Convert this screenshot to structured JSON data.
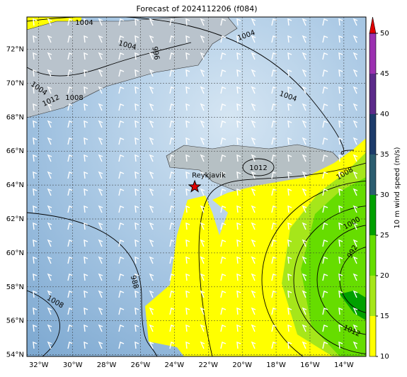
{
  "title": "Forecast of 2024112206 (f084)",
  "map": {
    "xlim": [
      -32.7,
      -12.7
    ],
    "ylim": [
      53.9,
      73.9
    ],
    "xticks": [
      {
        "value": -32,
        "label": "32°W"
      },
      {
        "value": -30,
        "label": "30°W"
      },
      {
        "value": -28,
        "label": "28°W"
      },
      {
        "value": -26,
        "label": "26°W"
      },
      {
        "value": -24,
        "label": "24°W"
      },
      {
        "value": -22,
        "label": "22°W"
      },
      {
        "value": -20,
        "label": "20°W"
      },
      {
        "value": -18,
        "label": "18°W"
      },
      {
        "value": -16,
        "label": "16°W"
      },
      {
        "value": -14,
        "label": "14°W"
      }
    ],
    "yticks": [
      {
        "value": 54,
        "label": "54°N"
      },
      {
        "value": 56,
        "label": "56°N"
      },
      {
        "value": 58,
        "label": "58°N"
      },
      {
        "value": 60,
        "label": "60°N"
      },
      {
        "value": 62,
        "label": "62°N"
      },
      {
        "value": 64,
        "label": "64°N"
      },
      {
        "value": 66,
        "label": "66°N"
      },
      {
        "value": 68,
        "label": "68°N"
      },
      {
        "value": 70,
        "label": "70°N"
      },
      {
        "value": 72,
        "label": "72°N"
      }
    ],
    "grid": true,
    "station": {
      "name": "Reykjavik",
      "lon": -22.8,
      "lat": 63.9
    },
    "contour_labels": [
      "1004",
      "1004",
      "1004",
      "1004",
      "1004",
      "1012",
      "1008",
      "1012",
      "1008",
      "1000",
      "992",
      "988",
      "1008",
      "1012",
      "996"
    ]
  },
  "colorbar": {
    "label": "10 m wind speed (m/s)",
    "lim": [
      10,
      50
    ],
    "ticks": [
      10,
      15,
      20,
      25,
      30,
      35,
      40,
      45,
      50
    ],
    "colors": [
      "#ffff00",
      "#a6e61a",
      "#66dd00",
      "#00a000",
      "#2b5d6f",
      "#1c3b6a",
      "#5b2a8a",
      "#9b30b0"
    ],
    "extend_color": "#e00000"
  }
}
